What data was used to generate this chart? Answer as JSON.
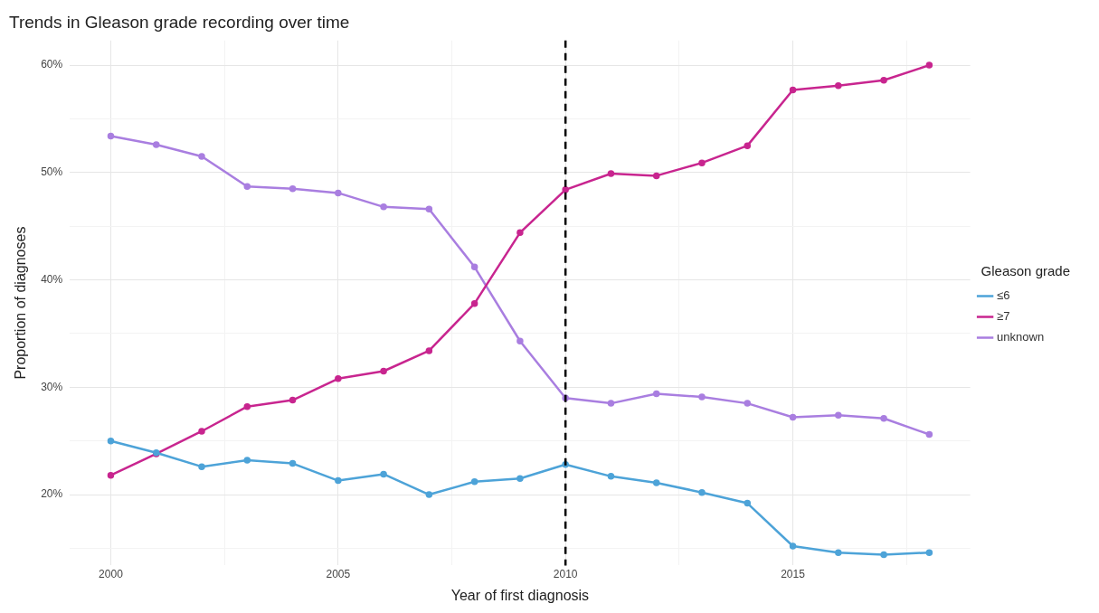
{
  "chart_data": {
    "type": "line",
    "title": "Trends in Gleason grade recording over time",
    "xlabel": "Year of first diagnosis",
    "ylabel": "Proportion of diagnoses",
    "legend_title": "Gleason grade",
    "legend": "right",
    "grid": true,
    "marker": "circle",
    "line_style": "solid",
    "x": [
      2000,
      2001,
      2002,
      2003,
      2004,
      2005,
      2006,
      2007,
      2008,
      2009,
      2010,
      2011,
      2012,
      2013,
      2014,
      2015,
      2016,
      2017,
      2018
    ],
    "xlim": [
      1999.1,
      2018.9
    ],
    "xticks": [
      2000,
      {
        "value": 2002.5,
        "label": null
      },
      2005,
      {
        "value": 2007.5,
        "label": null
      },
      2010,
      {
        "value": 2012.5,
        "label": null
      },
      2015,
      {
        "value": 2017.5,
        "label": null
      }
    ],
    "ylim": [
      13.4,
      62.3
    ],
    "yticks": [
      {
        "value": 15,
        "label": null
      },
      {
        "value": 20,
        "label": "20%"
      },
      {
        "value": 25,
        "label": null
      },
      {
        "value": 30,
        "label": "30%"
      },
      {
        "value": 35,
        "label": null
      },
      {
        "value": 40,
        "label": "40%"
      },
      {
        "value": 45,
        "label": null
      },
      {
        "value": 50,
        "label": "50%"
      },
      {
        "value": 55,
        "label": null
      },
      {
        "value": 60,
        "label": "60%"
      }
    ],
    "series": [
      {
        "name": "≤6",
        "color": "#4da3d8",
        "values": [
          25.0,
          23.9,
          22.6,
          23.2,
          22.9,
          21.3,
          21.9,
          20.0,
          21.2,
          21.5,
          22.8,
          21.7,
          21.1,
          20.2,
          19.2,
          15.2,
          14.6,
          14.4,
          14.6
        ]
      },
      {
        "name": "≥7",
        "color": "#c8258f",
        "values": [
          21.8,
          23.8,
          25.9,
          28.2,
          28.8,
          30.8,
          31.5,
          33.4,
          37.8,
          44.4,
          48.4,
          49.9,
          49.7,
          50.9,
          52.5,
          57.7,
          58.1,
          58.6,
          60.0
        ]
      },
      {
        "name": "unknown",
        "color": "#a97ee0",
        "values": [
          53.4,
          52.6,
          51.5,
          48.7,
          48.5,
          48.1,
          46.8,
          46.6,
          41.2,
          34.3,
          29.0,
          28.5,
          29.4,
          29.1,
          28.5,
          27.2,
          27.4,
          27.1,
          25.6
        ]
      }
    ],
    "ref_lines": [
      {
        "axis": "x",
        "value": 2010,
        "color": "#000000",
        "line_style": "dashed"
      }
    ]
  }
}
